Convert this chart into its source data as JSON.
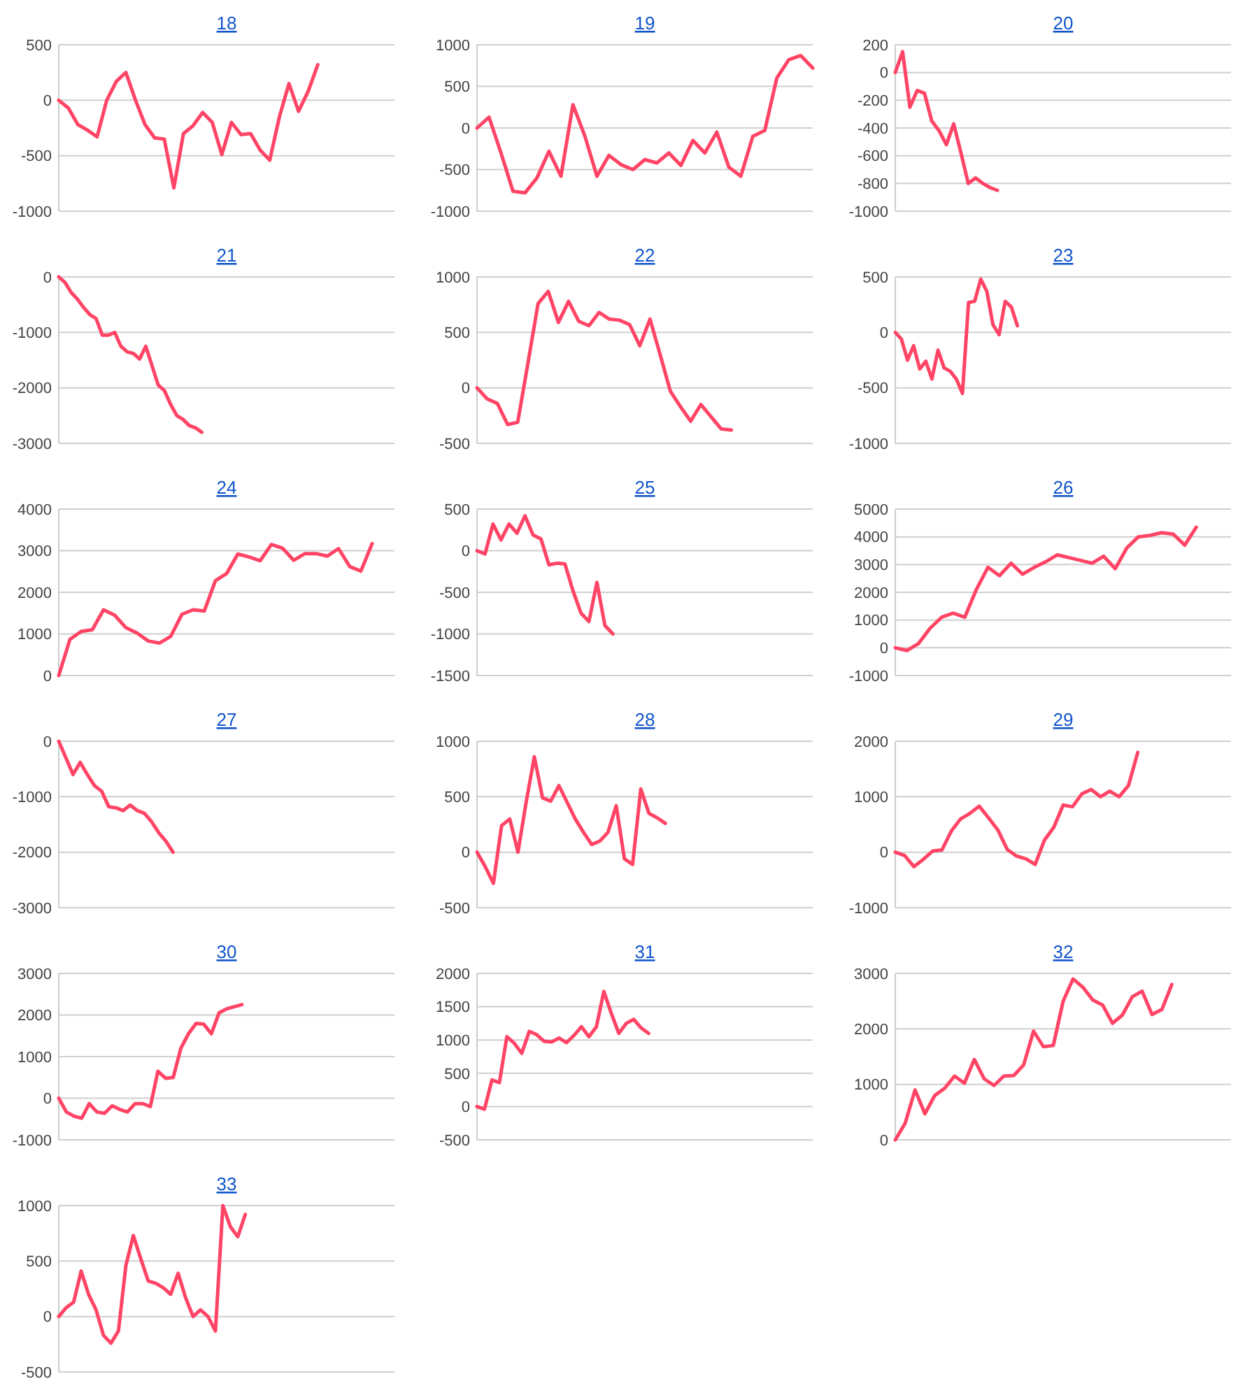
{
  "chart_data": [
    {
      "type": "line",
      "title": "18",
      "color": "#ff4466",
      "grid": "y",
      "ylim": [
        -1000,
        500
      ],
      "yticks": [
        -1000,
        -500,
        0,
        500
      ],
      "categories": [
        null,
        null,
        null,
        null,
        null,
        null,
        null,
        null,
        null,
        null,
        null,
        null,
        null,
        null,
        null,
        null,
        null,
        null,
        null,
        null,
        null,
        null,
        null,
        null,
        null,
        null,
        null,
        null,
        null,
        null,
        null,
        null,
        null,
        null,
        null,
        null
      ],
      "values": [
        0,
        -70,
        -220,
        -270,
        -330,
        0,
        170,
        250,
        0,
        -220,
        -340,
        -350,
        -790,
        -300,
        -230,
        -110,
        -200,
        -490,
        -200,
        -310,
        -300,
        -450,
        -540,
        -150,
        150,
        -100,
        80,
        320,
        null,
        null,
        null,
        null,
        null,
        null,
        null,
        null
      ]
    },
    {
      "type": "line",
      "title": "19",
      "color": "#ff4466",
      "grid": "y",
      "ylim": [
        -1000,
        1000
      ],
      "yticks": [
        -1000,
        -500,
        0,
        500,
        1000
      ],
      "categories": [
        null,
        null,
        null,
        null,
        null,
        null,
        null,
        null,
        null,
        null,
        null,
        null,
        null,
        null,
        null,
        null,
        null,
        null,
        null,
        null,
        null,
        null,
        null,
        null,
        null,
        null,
        null,
        null,
        null
      ],
      "values": [
        0,
        130,
        -300,
        -760,
        -780,
        -600,
        -280,
        -580,
        280,
        -100,
        -580,
        -330,
        -440,
        -500,
        -380,
        -420,
        -300,
        -450,
        -150,
        -300,
        -50,
        -470,
        -580,
        -100,
        -30,
        600,
        820,
        870,
        720
      ]
    },
    {
      "type": "line",
      "title": "20",
      "color": "#ff4466",
      "grid": "y",
      "ylim": [
        -1000,
        200
      ],
      "yticks": [
        -1000,
        -800,
        -600,
        -400,
        -200,
        0,
        200
      ],
      "categories": [
        null,
        null,
        null,
        null,
        null,
        null,
        null,
        null,
        null,
        null,
        null,
        null,
        null,
        null,
        null,
        null,
        null,
        null,
        null,
        null,
        null,
        null,
        null,
        null,
        null,
        null,
        null,
        null,
        null,
        null,
        null,
        null,
        null,
        null,
        null,
        null,
        null,
        null,
        null,
        null,
        null,
        null,
        null,
        null,
        null,
        null,
        null
      ],
      "values": [
        0,
        150,
        -250,
        -130,
        -150,
        -350,
        -420,
        -520,
        -370,
        -580,
        -800,
        -760,
        -800,
        -830,
        -850,
        null,
        null,
        null,
        null,
        null,
        null,
        null,
        null,
        null,
        null,
        null,
        null,
        null,
        null,
        null,
        null,
        null,
        null,
        null,
        null,
        null,
        null,
        null,
        null,
        null,
        null,
        null,
        null,
        null,
        null,
        null,
        null
      ]
    },
    {
      "type": "line",
      "title": "21",
      "color": "#ff4466",
      "grid": "y",
      "ylim": [
        -3000,
        0
      ],
      "yticks": [
        -3000,
        -2000,
        -1000,
        0
      ],
      "categories": [
        null,
        null,
        null,
        null,
        null,
        null,
        null,
        null,
        null,
        null,
        null,
        null,
        null,
        null,
        null,
        null,
        null,
        null,
        null,
        null,
        null,
        null,
        null,
        null,
        null,
        null,
        null,
        null,
        null,
        null,
        null,
        null,
        null,
        null,
        null,
        null,
        null,
        null,
        null,
        null,
        null,
        null,
        null,
        null,
        null,
        null,
        null,
        null,
        null,
        null,
        null,
        null,
        null,
        null,
        null
      ],
      "values": [
        0,
        -100,
        -280,
        -400,
        -550,
        -680,
        -750,
        -1050,
        -1050,
        -1000,
        -1250,
        -1350,
        -1380,
        -1480,
        -1250,
        -1600,
        -1950,
        -2050,
        -2300,
        -2500,
        -2570,
        -2680,
        -2720,
        -2800,
        null,
        null,
        null,
        null,
        null,
        null,
        null,
        null,
        null,
        null,
        null,
        null,
        null,
        null,
        null,
        null,
        null,
        null,
        null,
        null,
        null,
        null,
        null,
        null,
        null,
        null,
        null,
        null,
        null,
        null,
        null
      ]
    },
    {
      "type": "line",
      "title": "22",
      "color": "#ff4466",
      "grid": "y",
      "ylim": [
        -500,
        1000
      ],
      "yticks": [
        -500,
        0,
        500,
        1000
      ],
      "categories": [
        null,
        null,
        null,
        null,
        null,
        null,
        null,
        null,
        null,
        null,
        null,
        null,
        null,
        null,
        null,
        null,
        null,
        null,
        null,
        null,
        null,
        null,
        null,
        null,
        null,
        null,
        null,
        null,
        null,
        null,
        null,
        null,
        null,
        null
      ],
      "values": [
        0,
        -100,
        -140,
        -330,
        -310,
        220,
        760,
        870,
        590,
        780,
        600,
        560,
        680,
        620,
        610,
        570,
        380,
        620,
        300,
        -30,
        -170,
        -300,
        -150,
        -260,
        -370,
        -380,
        null,
        null,
        null,
        null,
        null,
        null,
        null,
        null
      ]
    },
    {
      "type": "line",
      "title": "23",
      "color": "#ff4466",
      "grid": "y",
      "ylim": [
        -1000,
        500
      ],
      "yticks": [
        -1000,
        -500,
        0,
        500
      ],
      "categories": [
        null,
        null,
        null,
        null,
        null,
        null,
        null,
        null,
        null,
        null,
        null,
        null,
        null,
        null,
        null,
        null,
        null,
        null,
        null,
        null,
        null,
        null,
        null,
        null,
        null,
        null,
        null,
        null,
        null,
        null,
        null,
        null,
        null,
        null,
        null,
        null,
        null,
        null,
        null,
        null,
        null,
        null,
        null,
        null,
        null,
        null,
        null,
        null,
        null,
        null,
        null,
        null,
        null,
        null,
        null,
        null
      ],
      "values": [
        0,
        -60,
        -250,
        -120,
        -330,
        -260,
        -420,
        -160,
        -320,
        -350,
        -420,
        -550,
        270,
        280,
        480,
        370,
        70,
        -20,
        280,
        230,
        60,
        null,
        null,
        null,
        null,
        null,
        null,
        null,
        null,
        null,
        null,
        null,
        null,
        null,
        null,
        null,
        null,
        null,
        null,
        null,
        null,
        null,
        null,
        null,
        null,
        null,
        null,
        null,
        null,
        null,
        null,
        null,
        null,
        null,
        null,
        null
      ]
    },
    {
      "type": "line",
      "title": "24",
      "color": "#ff4466",
      "grid": "y",
      "ylim": [
        0,
        4000
      ],
      "yticks": [
        0,
        1000,
        2000,
        3000,
        4000
      ],
      "categories": [
        null,
        null,
        null,
        null,
        null,
        null,
        null,
        null,
        null,
        null,
        null,
        null,
        null,
        null,
        null,
        null,
        null,
        null,
        null,
        null,
        null,
        null,
        null,
        null,
        null,
        null,
        null,
        null,
        null,
        null,
        null
      ],
      "values": [
        0,
        870,
        1060,
        1100,
        1580,
        1450,
        1150,
        1020,
        830,
        780,
        940,
        1470,
        1580,
        1550,
        2280,
        2450,
        2920,
        2850,
        2760,
        3150,
        3060,
        2770,
        2930,
        2930,
        2870,
        3050,
        2620,
        2510,
        3170,
        null,
        null
      ]
    },
    {
      "type": "line",
      "title": "25",
      "color": "#ff4466",
      "grid": "y",
      "ylim": [
        -1500,
        500
      ],
      "yticks": [
        -1500,
        -1000,
        -500,
        0,
        500
      ],
      "categories": [
        null,
        null,
        null,
        null,
        null,
        null,
        null,
        null,
        null,
        null,
        null,
        null,
        null,
        null,
        null,
        null,
        null,
        null,
        null,
        null,
        null,
        null,
        null,
        null,
        null,
        null,
        null,
        null,
        null,
        null,
        null,
        null,
        null,
        null,
        null,
        null,
        null,
        null,
        null,
        null,
        null,
        null,
        null
      ],
      "values": [
        0,
        -40,
        320,
        130,
        320,
        210,
        420,
        190,
        140,
        -170,
        -150,
        -160,
        -480,
        -750,
        -850,
        -380,
        -900,
        -1000,
        null,
        null,
        null,
        null,
        null,
        null,
        null,
        null,
        null,
        null,
        null,
        null,
        null,
        null,
        null,
        null,
        null,
        null,
        null,
        null,
        null,
        null,
        null,
        null,
        null
      ]
    },
    {
      "type": "line",
      "title": "26",
      "color": "#ff4466",
      "grid": "y",
      "ylim": [
        -1000,
        5000
      ],
      "yticks": [
        -1000,
        0,
        1000,
        2000,
        3000,
        4000,
        5000
      ],
      "categories": [
        null,
        null,
        null,
        null,
        null,
        null,
        null,
        null,
        null,
        null,
        null,
        null,
        null,
        null,
        null,
        null,
        null,
        null,
        null,
        null,
        null,
        null,
        null,
        null,
        null,
        null,
        null,
        null,
        null,
        null
      ],
      "values": [
        0,
        -100,
        150,
        700,
        1100,
        1250,
        1100,
        2100,
        2900,
        2600,
        3050,
        2650,
        2900,
        3100,
        3350,
        3250,
        3150,
        3050,
        3300,
        2850,
        3600,
        4000,
        4050,
        4150,
        4100,
        3700,
        4350,
        null,
        null,
        null
      ]
    },
    {
      "type": "line",
      "title": "27",
      "color": "#ff4466",
      "grid": "y",
      "ylim": [
        -3000,
        0
      ],
      "yticks": [
        -3000,
        -2000,
        -1000,
        0
      ],
      "categories": [
        null,
        null,
        null,
        null,
        null,
        null,
        null,
        null,
        null,
        null,
        null,
        null,
        null,
        null,
        null,
        null,
        null,
        null,
        null,
        null,
        null,
        null,
        null,
        null,
        null,
        null,
        null,
        null,
        null,
        null,
        null,
        null,
        null,
        null,
        null,
        null,
        null,
        null,
        null,
        null,
        null,
        null,
        null,
        null,
        null,
        null,
        null,
        null
      ],
      "values": [
        0,
        -300,
        -600,
        -380,
        -600,
        -800,
        -900,
        -1180,
        -1200,
        -1250,
        -1150,
        -1250,
        -1300,
        -1450,
        -1650,
        -1800,
        -2000,
        null,
        null,
        null,
        null,
        null,
        null,
        null,
        null,
        null,
        null,
        null,
        null,
        null,
        null,
        null,
        null,
        null,
        null,
        null,
        null,
        null,
        null,
        null,
        null,
        null,
        null,
        null,
        null,
        null,
        null,
        null
      ]
    },
    {
      "type": "line",
      "title": "28",
      "color": "#ff4466",
      "grid": "y",
      "ylim": [
        -500,
        1000
      ],
      "yticks": [
        -500,
        0,
        500,
        1000
      ],
      "categories": [
        null,
        null,
        null,
        null,
        null,
        null,
        null,
        null,
        null,
        null,
        null,
        null,
        null,
        null,
        null,
        null,
        null,
        null,
        null,
        null,
        null,
        null,
        null,
        null,
        null,
        null,
        null,
        null,
        null,
        null,
        null,
        null,
        null,
        null,
        null,
        null,
        null,
        null,
        null,
        null,
        null,
        null
      ],
      "values": [
        0,
        -130,
        -280,
        240,
        300,
        0,
        450,
        860,
        490,
        460,
        600,
        450,
        300,
        180,
        70,
        100,
        180,
        420,
        -60,
        -110,
        570,
        350,
        310,
        260,
        null,
        null,
        null,
        null,
        null,
        null,
        null,
        null,
        null,
        null,
        null,
        null,
        null,
        null,
        null,
        null,
        null,
        null
      ]
    },
    {
      "type": "line",
      "title": "29",
      "color": "#ff4466",
      "grid": "y",
      "ylim": [
        -1000,
        2000
      ],
      "yticks": [
        -1000,
        0,
        1000,
        2000
      ],
      "categories": [
        null,
        null,
        null,
        null,
        null,
        null,
        null,
        null,
        null,
        null,
        null,
        null,
        null,
        null,
        null,
        null,
        null,
        null,
        null,
        null,
        null,
        null,
        null,
        null,
        null,
        null,
        null,
        null,
        null,
        null,
        null,
        null,
        null,
        null,
        null,
        null,
        null
      ],
      "values": [
        0,
        -60,
        -260,
        -130,
        20,
        40,
        380,
        600,
        700,
        830,
        620,
        400,
        50,
        -70,
        -120,
        -220,
        220,
        450,
        850,
        820,
        1050,
        1130,
        1000,
        1100,
        1000,
        1200,
        1800,
        null,
        null,
        null,
        null,
        null,
        null,
        null,
        null,
        null,
        null
      ]
    },
    {
      "type": "line",
      "title": "30",
      "color": "#ff4466",
      "grid": "y",
      "ylim": [
        -1000,
        3000
      ],
      "yticks": [
        -1000,
        0,
        1000,
        2000,
        3000
      ],
      "categories": [
        null,
        null,
        null,
        null,
        null,
        null,
        null,
        null,
        null,
        null,
        null,
        null,
        null,
        null,
        null,
        null,
        null,
        null,
        null,
        null,
        null,
        null,
        null,
        null,
        null,
        null,
        null,
        null,
        null,
        null,
        null,
        null,
        null,
        null,
        null,
        null,
        null,
        null,
        null,
        null,
        null,
        null,
        null,
        null,
        null
      ],
      "values": [
        0,
        -330,
        -430,
        -480,
        -130,
        -330,
        -360,
        -180,
        -270,
        -330,
        -130,
        -130,
        -200,
        650,
        480,
        500,
        1200,
        1550,
        1800,
        1780,
        1550,
        2050,
        2150,
        2200,
        2250,
        null,
        null,
        null,
        null,
        null,
        null,
        null,
        null,
        null,
        null,
        null,
        null,
        null,
        null,
        null,
        null,
        null,
        null,
        null,
        null
      ]
    },
    {
      "type": "line",
      "title": "31",
      "color": "#ff4466",
      "grid": "y",
      "ylim": [
        -500,
        2000
      ],
      "yticks": [
        -500,
        0,
        500,
        1000,
        1500,
        2000
      ],
      "categories": [
        null,
        null,
        null,
        null,
        null,
        null,
        null,
        null,
        null,
        null,
        null,
        null,
        null,
        null,
        null,
        null,
        null,
        null,
        null,
        null,
        null,
        null,
        null,
        null,
        null,
        null,
        null,
        null,
        null,
        null,
        null,
        null,
        null,
        null,
        null,
        null,
        null,
        null,
        null,
        null,
        null,
        null,
        null,
        null,
        null,
        null
      ],
      "values": [
        0,
        -40,
        400,
        360,
        1050,
        950,
        800,
        1130,
        1080,
        980,
        970,
        1030,
        960,
        1070,
        1200,
        1050,
        1200,
        1730,
        1400,
        1100,
        1250,
        1310,
        1180,
        1100,
        null,
        null,
        null,
        null,
        null,
        null,
        null,
        null,
        null,
        null,
        null,
        null,
        null,
        null,
        null,
        null,
        null,
        null,
        null,
        null,
        null,
        null
      ]
    },
    {
      "type": "line",
      "title": "32",
      "color": "#ff4466",
      "grid": "y",
      "ylim": [
        0,
        3000
      ],
      "yticks": [
        0,
        1000,
        2000,
        3000
      ],
      "categories": [
        null,
        null,
        null,
        null,
        null,
        null,
        null,
        null,
        null,
        null,
        null,
        null,
        null,
        null,
        null,
        null,
        null,
        null,
        null,
        null,
        null,
        null,
        null,
        null,
        null,
        null,
        null,
        null,
        null,
        null,
        null,
        null,
        null,
        null,
        null
      ],
      "values": [
        0,
        300,
        900,
        470,
        800,
        930,
        1150,
        1020,
        1450,
        1100,
        980,
        1150,
        1160,
        1350,
        1960,
        1680,
        1700,
        2500,
        2900,
        2750,
        2520,
        2430,
        2100,
        2250,
        2580,
        2680,
        2260,
        2350,
        2800,
        null,
        null,
        null,
        null,
        null,
        null
      ]
    },
    {
      "type": "line",
      "title": "33",
      "color": "#ff4466",
      "grid": "y",
      "ylim": [
        -500,
        1000
      ],
      "yticks": [
        -500,
        0,
        500,
        1000
      ],
      "categories": [
        null,
        null,
        null,
        null,
        null,
        null,
        null,
        null,
        null,
        null,
        null,
        null,
        null,
        null,
        null,
        null,
        null,
        null,
        null,
        null,
        null,
        null,
        null,
        null,
        null,
        null,
        null,
        null,
        null,
        null,
        null,
        null,
        null,
        null,
        null,
        null,
        null,
        null,
        null,
        null,
        null,
        null,
        null,
        null,
        null,
        null
      ],
      "values": [
        0,
        80,
        130,
        410,
        200,
        60,
        -170,
        -240,
        -130,
        460,
        730,
        520,
        320,
        300,
        260,
        200,
        390,
        170,
        0,
        60,
        0,
        -130,
        1000,
        810,
        720,
        920,
        null,
        null,
        null,
        null,
        null,
        null,
        null,
        null,
        null,
        null,
        null,
        null,
        null,
        null,
        null,
        null,
        null,
        null,
        null,
        null
      ]
    }
  ]
}
